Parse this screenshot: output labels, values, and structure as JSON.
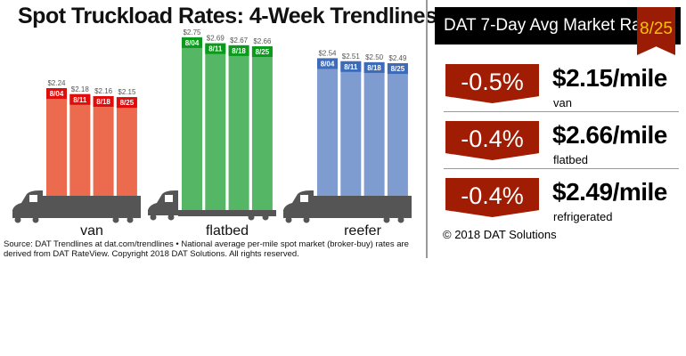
{
  "chart_data": {
    "type": "bar",
    "title": "Spot Truckload Rates: 4-Week Trendlines",
    "categories": [
      "8/04",
      "8/11",
      "8/18",
      "8/25"
    ],
    "series": [
      {
        "name": "van",
        "values": [
          2.24,
          2.18,
          2.16,
          2.15
        ],
        "labels": [
          "$2.24",
          "$2.18",
          "$2.16",
          "$2.15"
        ],
        "color": "#ec6a4e",
        "head_color": "#e00d0d"
      },
      {
        "name": "flatbed",
        "values": [
          2.75,
          2.69,
          2.67,
          2.66
        ],
        "labels": [
          "$2.75",
          "$2.69",
          "$2.67",
          "$2.66"
        ],
        "color": "#55b766",
        "head_color": "#0c9a1c"
      },
      {
        "name": "reefer",
        "values": [
          2.54,
          2.51,
          2.5,
          2.49
        ],
        "labels": [
          "$2.54",
          "$2.51",
          "$2.50",
          "$2.49"
        ],
        "color": "#7e9cd0",
        "head_color": "#3d6bb7"
      }
    ],
    "source": "Source: DAT Trendlines at dat.com/trendlines • National average per-mile spot market (broker-buy) rates are derived from DAT RateView. Copyright 2018 DAT Solutions. All rights reserved."
  },
  "panel": {
    "title": "DAT 7-Day Avg Market Rate",
    "date": "8/25",
    "rows": [
      {
        "change": "-0.5%",
        "rate": "$2.15/mile",
        "type": "van"
      },
      {
        "change": "-0.4%",
        "rate": "$2.66/mile",
        "type": "flatbed"
      },
      {
        "change": "-0.4%",
        "rate": "$2.49/mile",
        "type": "refrigerated"
      }
    ],
    "copyright": "© 2018 DAT Solutions"
  }
}
